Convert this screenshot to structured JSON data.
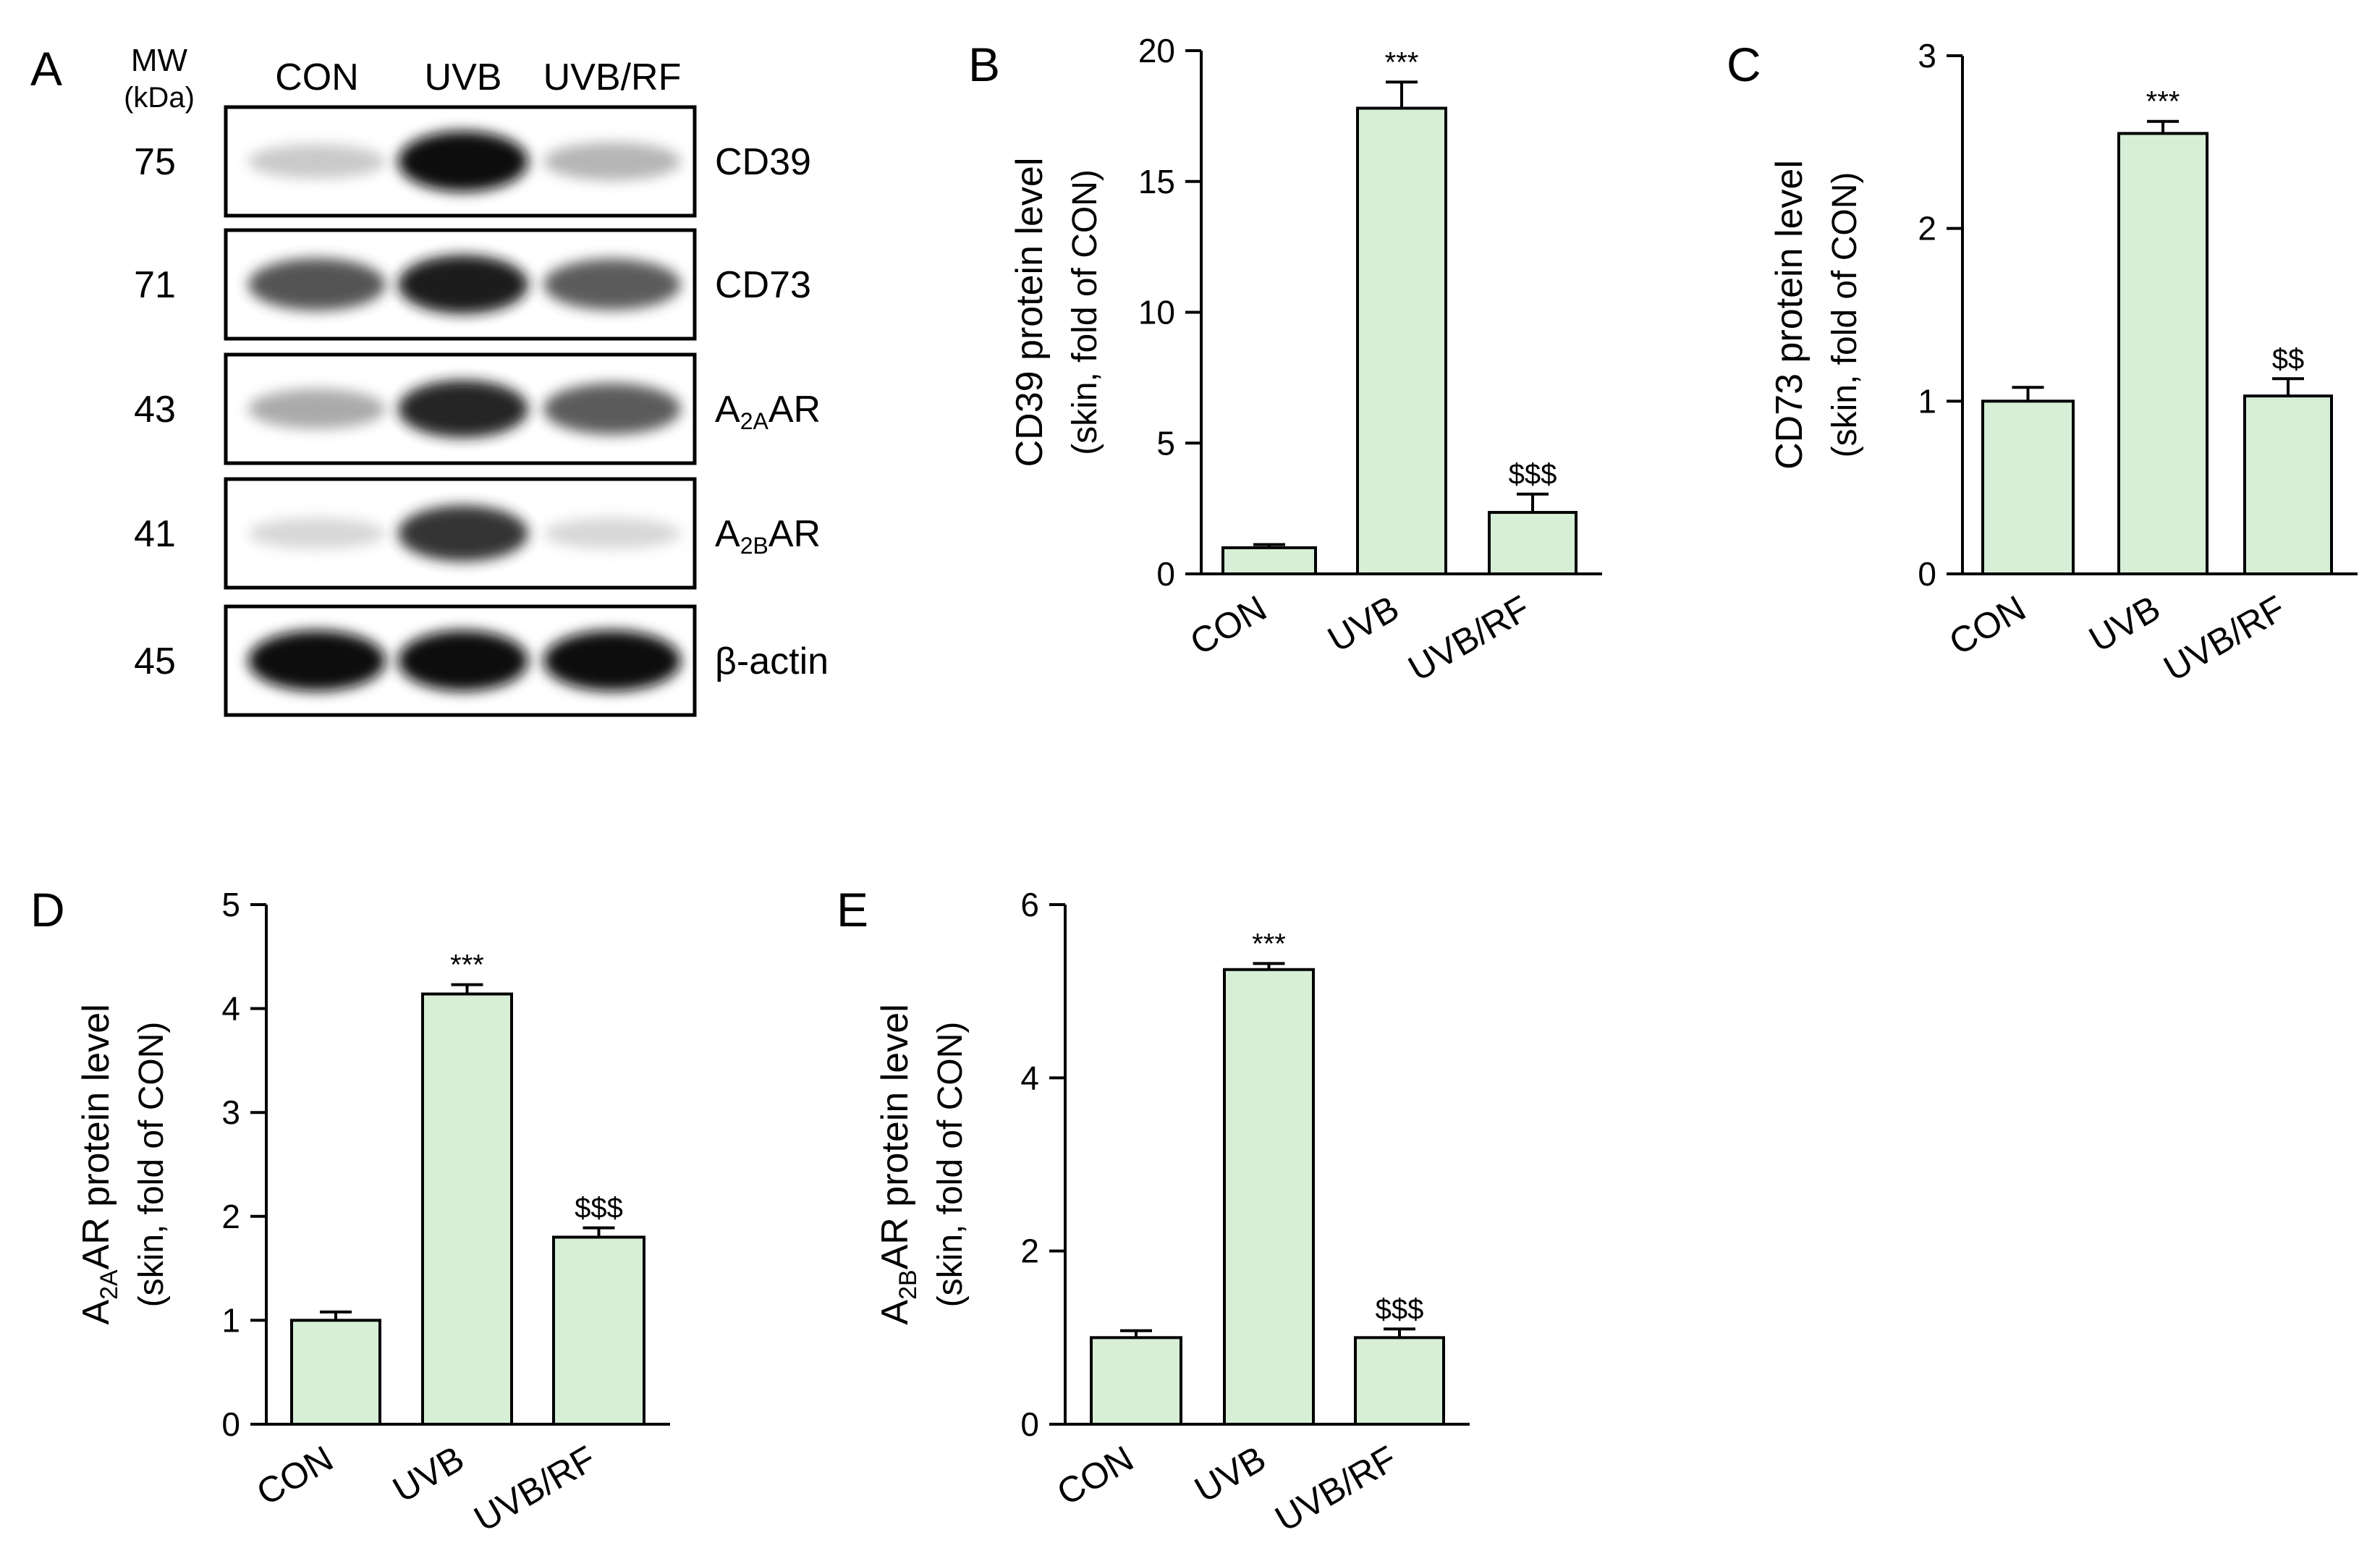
{
  "panel_a": {
    "letter": "A",
    "mw_label": "MW",
    "kda_label": "(kDa)",
    "lanes": [
      "CON",
      "UVB",
      "UVB/RF"
    ],
    "blots": [
      {
        "mw": "75",
        "label": "CD39",
        "sub": "",
        "label_after": "",
        "intensity": [
          0.3,
          1.0,
          0.4
        ]
      },
      {
        "mw": "71",
        "label": "CD73",
        "sub": "",
        "label_after": "",
        "intensity": [
          0.78,
          0.95,
          0.75
        ]
      },
      {
        "mw": "43",
        "label": "A",
        "sub": "2A",
        "label_after": "AR",
        "intensity": [
          0.45,
          0.92,
          0.75
        ]
      },
      {
        "mw": "41",
        "label": "A",
        "sub": "2B",
        "label_after": "AR",
        "intensity": [
          0.22,
          0.88,
          0.22
        ]
      },
      {
        "mw": "45",
        "label": "β-actin",
        "sub": "",
        "label_after": "",
        "intensity": [
          1.0,
          1.0,
          1.0
        ]
      }
    ]
  },
  "colors": {
    "bar_fill": "#d7eed7",
    "stroke": "#000000"
  },
  "chart_data": [
    {
      "panel": "B",
      "type": "bar",
      "categories": [
        "CON",
        "UVB",
        "UVB/RF"
      ],
      "values": [
        1.0,
        17.8,
        2.35
      ],
      "errors": [
        0.12,
        1.0,
        0.7
      ],
      "annotations": [
        "",
        "***",
        "$$$"
      ],
      "ylabel": "CD39 protein level",
      "ylabel_sub": "",
      "ylabel_after": "",
      "ylabel2": "(skin, fold of CON)",
      "ylim": [
        0,
        20
      ],
      "yticks": [
        0,
        5,
        10,
        15,
        20
      ]
    },
    {
      "panel": "C",
      "type": "bar",
      "categories": [
        "CON",
        "UVB",
        "UVB/RF"
      ],
      "values": [
        1.0,
        2.55,
        1.03
      ],
      "errors": [
        0.08,
        0.07,
        0.1
      ],
      "annotations": [
        "",
        "***",
        "$$"
      ],
      "ylabel": "CD73 protein level",
      "ylabel_sub": "",
      "ylabel_after": "",
      "ylabel2": "(skin, fold of CON)",
      "ylim": [
        0,
        3
      ],
      "yticks": [
        0,
        1,
        2,
        3
      ]
    },
    {
      "panel": "D",
      "type": "bar",
      "categories": [
        "CON",
        "UVB",
        "UVB/RF"
      ],
      "values": [
        1.0,
        4.14,
        1.8
      ],
      "errors": [
        0.08,
        0.09,
        0.09
      ],
      "annotations": [
        "",
        "***",
        "$$$"
      ],
      "ylabel": "A",
      "ylabel_sub": "2A",
      "ylabel_after": "AR protein level",
      "ylabel2": "(skin, fold of CON)",
      "ylim": [
        0,
        5
      ],
      "yticks": [
        0,
        1,
        2,
        3,
        4,
        5
      ]
    },
    {
      "panel": "E",
      "type": "bar",
      "categories": [
        "CON",
        "UVB",
        "UVB/RF"
      ],
      "values": [
        1.0,
        5.25,
        1.0
      ],
      "errors": [
        0.08,
        0.07,
        0.1
      ],
      "annotations": [
        "",
        "***",
        "$$$"
      ],
      "ylabel": "A",
      "ylabel_sub": "2B",
      "ylabel_after": "AR protein level",
      "ylabel2": "(skin, fold of CON)",
      "ylim": [
        0,
        6
      ],
      "yticks": [
        0,
        2,
        4,
        6
      ]
    }
  ]
}
